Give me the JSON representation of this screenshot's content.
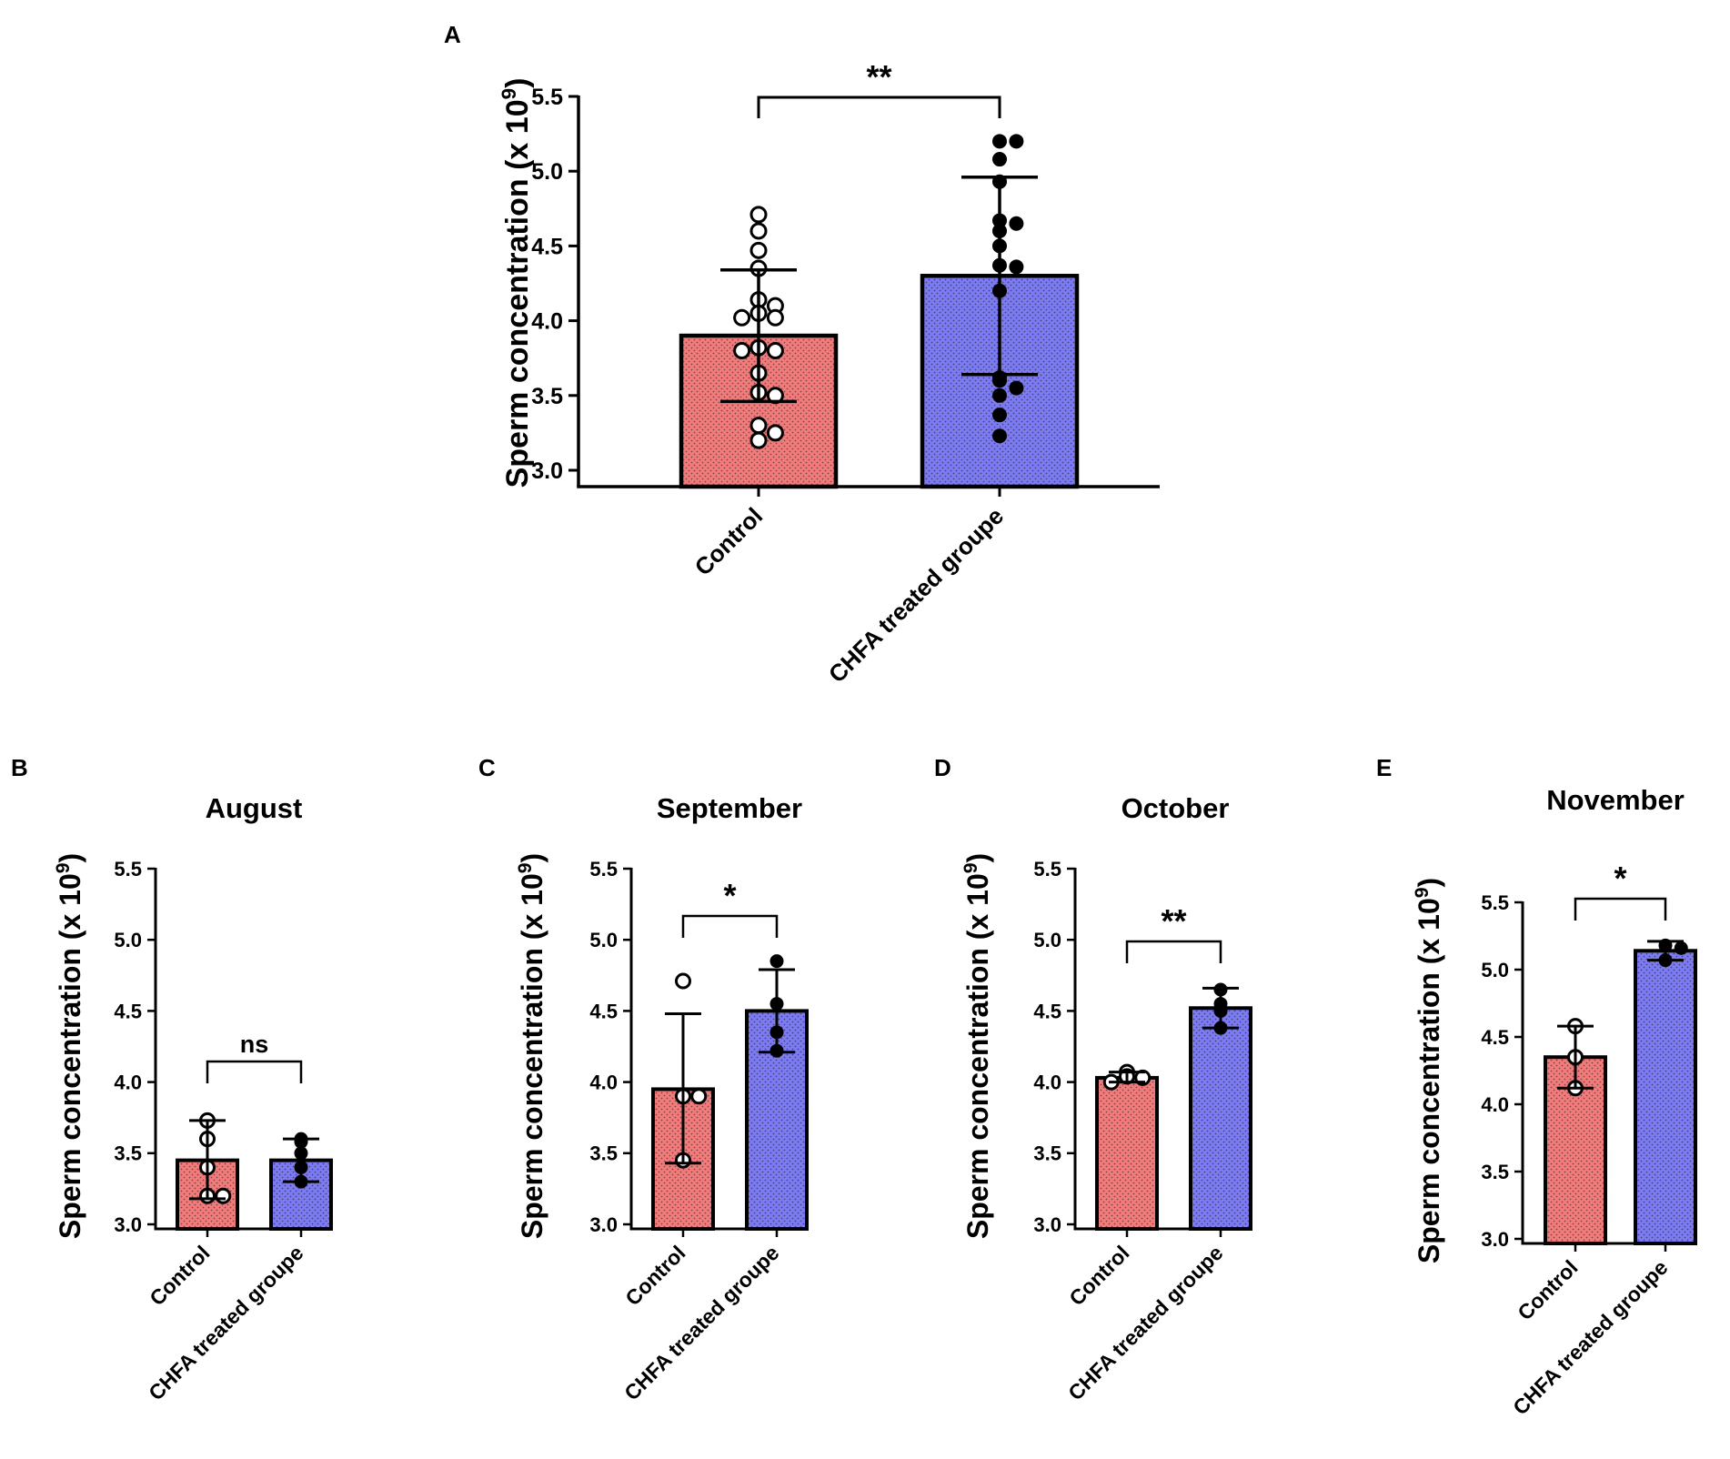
{
  "colors": {
    "control": "#f07c7c",
    "treated": "#7c7cf0",
    "line": "#000000",
    "dot": "#000000"
  },
  "chart_data": [
    {
      "panel": "A",
      "type": "bar",
      "title": "",
      "ylabel": "Sperm concentration (x 10",
      "ylabel_sup": "9",
      "ylabel_close": ")",
      "ylim": [
        3.0,
        5.5
      ],
      "yticks": [
        3.0,
        3.5,
        4.0,
        4.5,
        5.0,
        5.5
      ],
      "ytick_labels": [
        "3.0",
        "3.5",
        "4.0",
        "4.5",
        "5.0",
        "5.5"
      ],
      "categories": [
        "Control",
        "CHFA treated groupe"
      ],
      "values": [
        3.9,
        4.3
      ],
      "errors": [
        [
          3.46,
          4.34
        ],
        [
          3.64,
          4.96
        ]
      ],
      "points": [
        [
          4.71,
          4.6,
          4.47,
          4.35,
          4.14,
          4.1,
          4.05,
          4.02,
          4.02,
          3.82,
          3.8,
          3.8,
          3.65,
          3.52,
          3.5,
          3.3,
          3.25,
          3.2
        ],
        [
          5.2,
          5.2,
          5.08,
          4.93,
          4.67,
          4.65,
          4.6,
          4.5,
          4.37,
          4.36,
          4.2,
          3.62,
          3.6,
          3.55,
          3.5,
          3.37,
          3.23
        ]
      ],
      "significance": "**"
    },
    {
      "panel": "B",
      "type": "bar",
      "title": "August",
      "ylabel": "Sperm concentration (x 10",
      "ylabel_sup": "9",
      "ylabel_close": ")",
      "ylim": [
        3.0,
        5.5
      ],
      "yticks": [
        3.0,
        3.5,
        4.0,
        4.5,
        5.0,
        5.5
      ],
      "ytick_labels": [
        "3.0",
        "3.5",
        "4.0",
        "4.5",
        "5.0",
        "5.5"
      ],
      "categories": [
        "Control",
        "CHFA treated groupe"
      ],
      "values": [
        3.45,
        3.45
      ],
      "errors": [
        [
          3.18,
          3.73
        ],
        [
          3.3,
          3.6
        ]
      ],
      "points": [
        [
          3.73,
          3.6,
          3.4,
          3.2,
          3.2
        ],
        [
          3.6,
          3.58,
          3.5,
          3.4,
          3.3
        ]
      ],
      "significance": "ns"
    },
    {
      "panel": "C",
      "type": "bar",
      "title": "September",
      "ylabel": "Sperm concentration (x 10",
      "ylabel_sup": "9",
      "ylabel_close": ")",
      "ylim": [
        3.0,
        5.5
      ],
      "yticks": [
        3.0,
        3.5,
        4.0,
        4.5,
        5.0,
        5.5
      ],
      "ytick_labels": [
        "3.0",
        "3.5",
        "4.0",
        "4.5",
        "5.0",
        "5.5"
      ],
      "categories": [
        "Control",
        "CHFA treated groupe"
      ],
      "values": [
        3.95,
        4.5
      ],
      "errors": [
        [
          3.43,
          4.48
        ],
        [
          4.21,
          4.79
        ]
      ],
      "points": [
        [
          4.71,
          3.9,
          3.9,
          3.45
        ],
        [
          4.85,
          4.55,
          4.35,
          4.22
        ]
      ],
      "significance": "*"
    },
    {
      "panel": "D",
      "type": "bar",
      "title": "October",
      "ylabel": "Sperm concentration (x 10",
      "ylabel_sup": "9",
      "ylabel_close": ")",
      "ylim": [
        3.0,
        5.5
      ],
      "yticks": [
        3.0,
        3.5,
        4.0,
        4.5,
        5.0,
        5.5
      ],
      "ytick_labels": [
        "3.0",
        "3.5",
        "4.0",
        "4.5",
        "5.0",
        "5.5"
      ],
      "categories": [
        "Control",
        "CHFA treated groupe"
      ],
      "values": [
        4.03,
        4.52
      ],
      "errors": [
        [
          4.0,
          4.07
        ],
        [
          4.38,
          4.66
        ]
      ],
      "points": [
        [
          4.07,
          4.04,
          4.03,
          4.0
        ],
        [
          4.65,
          4.55,
          4.5,
          4.38
        ]
      ],
      "significance": "**"
    },
    {
      "panel": "E",
      "type": "bar",
      "title": "November",
      "ylabel": "Sperm concentration (x 10",
      "ylabel_sup": "9",
      "ylabel_close": ")",
      "ylim": [
        3.0,
        5.5
      ],
      "yticks": [
        3.0,
        3.5,
        4.0,
        4.5,
        5.0,
        5.5
      ],
      "ytick_labels": [
        "3.0",
        "3.5",
        "4.0",
        "4.5",
        "5.0",
        "5.5"
      ],
      "categories": [
        "Control",
        "CHFA treated groupe"
      ],
      "values": [
        4.35,
        5.14
      ],
      "errors": [
        [
          4.12,
          4.58
        ],
        [
          5.07,
          5.21
        ]
      ],
      "points": [
        [
          4.58,
          4.35,
          4.12
        ],
        [
          5.18,
          5.16,
          5.07
        ]
      ],
      "significance": "*"
    }
  ]
}
